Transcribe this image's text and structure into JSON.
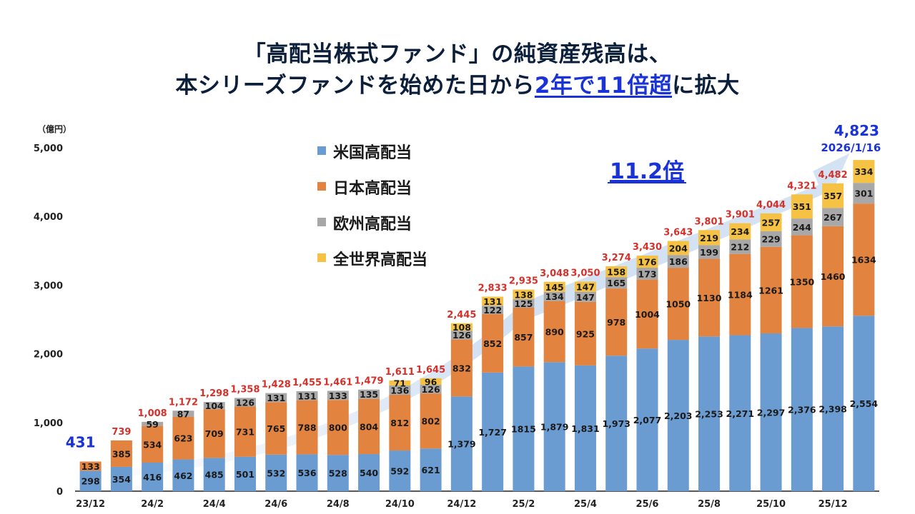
{
  "title": {
    "line1": "「高配当株式ファンド」の純資産残高は、",
    "line2_pre": "本シリーズファンドを始めた日から",
    "line2_hl": "2年で11倍超",
    "line2_post": "に拡大"
  },
  "colors": {
    "us": "#6a9bd1",
    "jp": "#e2833f",
    "eu": "#a8a8a8",
    "world": "#f6c243",
    "total_label": "#d6302a",
    "accent_blue": "#1a33d6"
  },
  "chart_data": {
    "type": "bar",
    "stacked": true,
    "unit_label": "（億円）",
    "ylim": [
      0,
      5000
    ],
    "yticks": [
      "0",
      "1,000",
      "2,000",
      "3,000",
      "4,000",
      "5,000"
    ],
    "ytick_values": [
      0,
      1000,
      2000,
      3000,
      4000,
      5000
    ],
    "categories": [
      "23/12",
      "24/1",
      "24/2",
      "24/3",
      "24/4",
      "24/5",
      "24/6",
      "24/7",
      "24/8",
      "24/9",
      "24/10",
      "24/11",
      "24/12",
      "25/1",
      "25/2",
      "25/3",
      "25/4",
      "25/5",
      "25/6",
      "25/7",
      "25/8",
      "25/9",
      "25/10",
      "25/11",
      "25/12",
      "26/1"
    ],
    "xtick_labels": [
      {
        "index": 0,
        "label": "23/12"
      },
      {
        "index": 2,
        "label": "24/2"
      },
      {
        "index": 4,
        "label": "24/4"
      },
      {
        "index": 6,
        "label": "24/6"
      },
      {
        "index": 8,
        "label": "24/8"
      },
      {
        "index": 10,
        "label": "24/10"
      },
      {
        "index": 12,
        "label": "24/12"
      },
      {
        "index": 14,
        "label": "25/2"
      },
      {
        "index": 16,
        "label": "25/4"
      },
      {
        "index": 18,
        "label": "25/6"
      },
      {
        "index": 20,
        "label": "25/8"
      },
      {
        "index": 22,
        "label": "25/10"
      },
      {
        "index": 24,
        "label": "25/12"
      }
    ],
    "series": [
      {
        "name": "米国高配当",
        "color": "#6a9bd1",
        "values": [
          298,
          354,
          416,
          462,
          485,
          501,
          532,
          536,
          528,
          540,
          592,
          621,
          1379,
          1727,
          1815,
          1879,
          1831,
          1973,
          2077,
          2203,
          2253,
          2271,
          2297,
          2376,
          2398,
          2554
        ],
        "labels": [
          "298",
          "354",
          "416",
          "462",
          "485",
          "501",
          "532",
          "536",
          "528",
          "540",
          "592",
          "621",
          "1,379",
          "1,727",
          "1815",
          "1,879",
          "1,831",
          "1,973",
          "2,077",
          "2,203",
          "2,253",
          "2,271",
          "2,297",
          "2,376",
          "2,398",
          "2,554"
        ]
      },
      {
        "name": "日本高配当",
        "color": "#e2833f",
        "values": [
          133,
          385,
          534,
          623,
          709,
          731,
          765,
          788,
          800,
          804,
          812,
          802,
          832,
          852,
          857,
          890,
          925,
          978,
          1004,
          1050,
          1130,
          1184,
          1261,
          1350,
          1460,
          1634
        ],
        "labels": [
          "133",
          "385",
          "534",
          "623",
          "709",
          "731",
          "765",
          "788",
          "800",
          "804",
          "812",
          "802",
          "832",
          "852",
          "857",
          "890",
          "925",
          "978",
          "1004",
          "1050",
          "1130",
          "1184",
          "1261",
          "1350",
          "1460",
          "1634"
        ]
      },
      {
        "name": "欧州高配当",
        "color": "#a8a8a8",
        "values": [
          0,
          0,
          59,
          87,
          104,
          126,
          131,
          131,
          133,
          135,
          136,
          126,
          126,
          122,
          125,
          134,
          147,
          165,
          173,
          186,
          199,
          212,
          229,
          244,
          267,
          301
        ],
        "labels": [
          "",
          "",
          "59",
          "87",
          "104",
          "126",
          "131",
          "131",
          "133",
          "135",
          "136",
          "126",
          "126",
          "122",
          "125",
          "134",
          "147",
          "165",
          "173",
          "186",
          "199",
          "212",
          "229",
          "244",
          "267",
          "301"
        ]
      },
      {
        "name": "全世界高配当",
        "color": "#f6c243",
        "values": [
          0,
          0,
          0,
          0,
          0,
          0,
          0,
          0,
          0,
          0,
          71,
          96,
          108,
          131,
          138,
          145,
          147,
          158,
          176,
          204,
          219,
          234,
          257,
          351,
          357,
          334
        ],
        "labels": [
          "",
          "",
          "",
          "",
          "",
          "",
          "",
          "",
          "",
          "",
          "71",
          "96",
          "108",
          "131",
          "138",
          "145",
          "147",
          "158",
          "176",
          "204",
          "219",
          "234",
          "257",
          "351",
          "357",
          "334"
        ]
      }
    ],
    "totals": [
      431,
      739,
      1008,
      1172,
      1298,
      1358,
      1428,
      1455,
      1461,
      1479,
      1611,
      1645,
      2445,
      2833,
      2935,
      3048,
      3050,
      3274,
      3430,
      3643,
      3801,
      3901,
      4044,
      4321,
      4482,
      4823
    ],
    "total_labels": [
      "431",
      "739",
      "1,008",
      "1,172",
      "1,298",
      "1,358",
      "1,428",
      "1,455",
      "1,461",
      "1,479",
      "1,611",
      "1,645",
      "2,445",
      "2,833",
      "2,935",
      "3,048",
      "3,050",
      "3,274",
      "3,430",
      "3,643",
      "3,801",
      "3,901",
      "4,044",
      "4,321",
      "4,482",
      "4,823"
    ],
    "last_date": "2026/1/16",
    "growth_label": "11.2倍",
    "legend": [
      "米国高配当",
      "日本高配当",
      "欧州高配当",
      "全世界高配当"
    ],
    "legend_position": "top-left"
  }
}
